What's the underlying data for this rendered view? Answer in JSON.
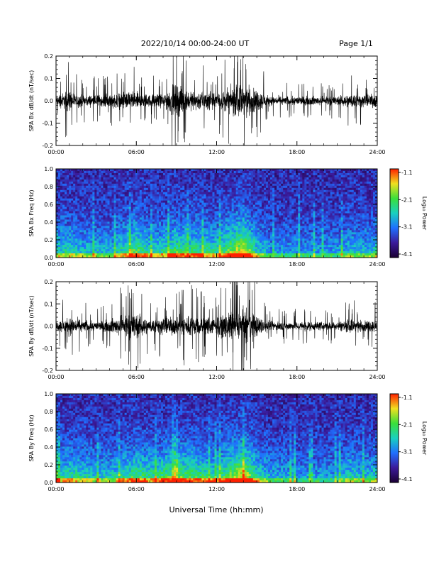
{
  "header": {
    "title": "2022/10/14  00:00-24:00 UT",
    "page": "Page 1/1"
  },
  "x_axis": {
    "xlabel": "Universal Time (hh:mm)",
    "ticks": [
      "00:00",
      "06:00",
      "12:00",
      "18:00",
      "24:00"
    ]
  },
  "colorbar": {
    "label": "Log₁₀ Power",
    "ticks": [
      "-1.1",
      "-2.1",
      "-3.1",
      "-4.1"
    ]
  },
  "palette": {
    "low": "#1a0033",
    "mid1": "#3b1a9a",
    "mid2": "#1f6fff",
    "mid3": "#19d0c0",
    "mid4": "#3adf3a",
    "high1": "#f0e020",
    "high2": "#ff2000"
  },
  "chart_data": [
    {
      "type": "line",
      "ylabel": "SPA Bx dB/dt (nT/sec)",
      "xlim_hours": [
        0,
        24
      ],
      "ylim": [
        -0.2,
        0.2
      ],
      "yticks": [
        "0.2",
        "0.1",
        "0.0",
        "-0.1",
        "-0.2"
      ],
      "amplitude_envelope": {
        "hours": [
          0,
          1,
          2,
          3,
          4,
          5,
          6,
          7,
          8,
          9,
          10,
          11,
          12,
          13,
          14,
          15,
          16,
          17,
          18,
          19,
          20,
          21,
          22,
          23,
          24
        ],
        "values": [
          0.06,
          0.12,
          0.06,
          0.07,
          0.07,
          0.1,
          0.1,
          0.07,
          0.08,
          0.2,
          0.1,
          0.12,
          0.08,
          0.15,
          0.2,
          0.12,
          0.05,
          0.05,
          0.05,
          0.05,
          0.05,
          0.05,
          0.08,
          0.07,
          0.08
        ]
      }
    },
    {
      "type": "heatmap",
      "ylabel": "SPA Bx Freq (Hz)",
      "xlim_hours": [
        0,
        24
      ],
      "ylim": [
        0.0,
        1.0
      ],
      "yticks": [
        "1.0",
        "0.8",
        "0.6",
        "0.4",
        "0.2",
        "0.0"
      ],
      "zlim": [
        -4.1,
        -1.1
      ],
      "activity": {
        "hours": [
          0,
          1,
          2,
          3,
          4,
          5,
          6,
          7,
          8,
          9,
          10,
          11,
          12,
          13,
          14,
          15,
          16,
          17,
          18,
          19,
          20,
          21,
          22,
          23,
          24
        ],
        "values": [
          0.45,
          0.45,
          0.4,
          0.4,
          0.35,
          0.5,
          0.65,
          0.45,
          0.5,
          0.6,
          0.55,
          0.55,
          0.45,
          0.7,
          0.9,
          0.45,
          0.3,
          0.3,
          0.3,
          0.3,
          0.3,
          0.3,
          0.4,
          0.35,
          0.45
        ]
      }
    },
    {
      "type": "line",
      "ylabel": "SPA By dB/dt (nT/sec)",
      "xlim_hours": [
        0,
        24
      ],
      "ylim": [
        -0.2,
        0.2
      ],
      "yticks": [
        "0.2",
        "0.1",
        "0.0",
        "-0.1",
        "-0.2"
      ],
      "amplitude_envelope": {
        "hours": [
          0,
          1,
          2,
          3,
          4,
          5,
          6,
          7,
          8,
          9,
          10,
          11,
          12,
          13,
          14,
          15,
          16,
          17,
          18,
          19,
          20,
          21,
          22,
          23,
          24
        ],
        "values": [
          0.05,
          0.1,
          0.07,
          0.05,
          0.07,
          0.12,
          0.15,
          0.07,
          0.1,
          0.1,
          0.13,
          0.1,
          0.1,
          0.15,
          0.2,
          0.12,
          0.05,
          0.05,
          0.05,
          0.05,
          0.05,
          0.05,
          0.08,
          0.06,
          0.07
        ]
      }
    },
    {
      "type": "heatmap",
      "ylabel": "SPA By Freq (Hz)",
      "xlim_hours": [
        0,
        24
      ],
      "ylim": [
        0.0,
        1.0
      ],
      "yticks": [
        "1.0",
        "0.8",
        "0.6",
        "0.4",
        "0.2",
        "0.0"
      ],
      "zlim": [
        -4.1,
        -1.1
      ],
      "activity": {
        "hours": [
          0,
          1,
          2,
          3,
          4,
          5,
          6,
          7,
          8,
          9,
          10,
          11,
          12,
          13,
          14,
          15,
          16,
          17,
          18,
          19,
          20,
          21,
          22,
          23,
          24
        ],
        "values": [
          0.45,
          0.5,
          0.45,
          0.4,
          0.4,
          0.5,
          0.6,
          0.5,
          0.6,
          0.65,
          0.6,
          0.55,
          0.5,
          0.7,
          0.9,
          0.5,
          0.35,
          0.35,
          0.3,
          0.3,
          0.3,
          0.3,
          0.45,
          0.35,
          0.45
        ]
      }
    }
  ]
}
